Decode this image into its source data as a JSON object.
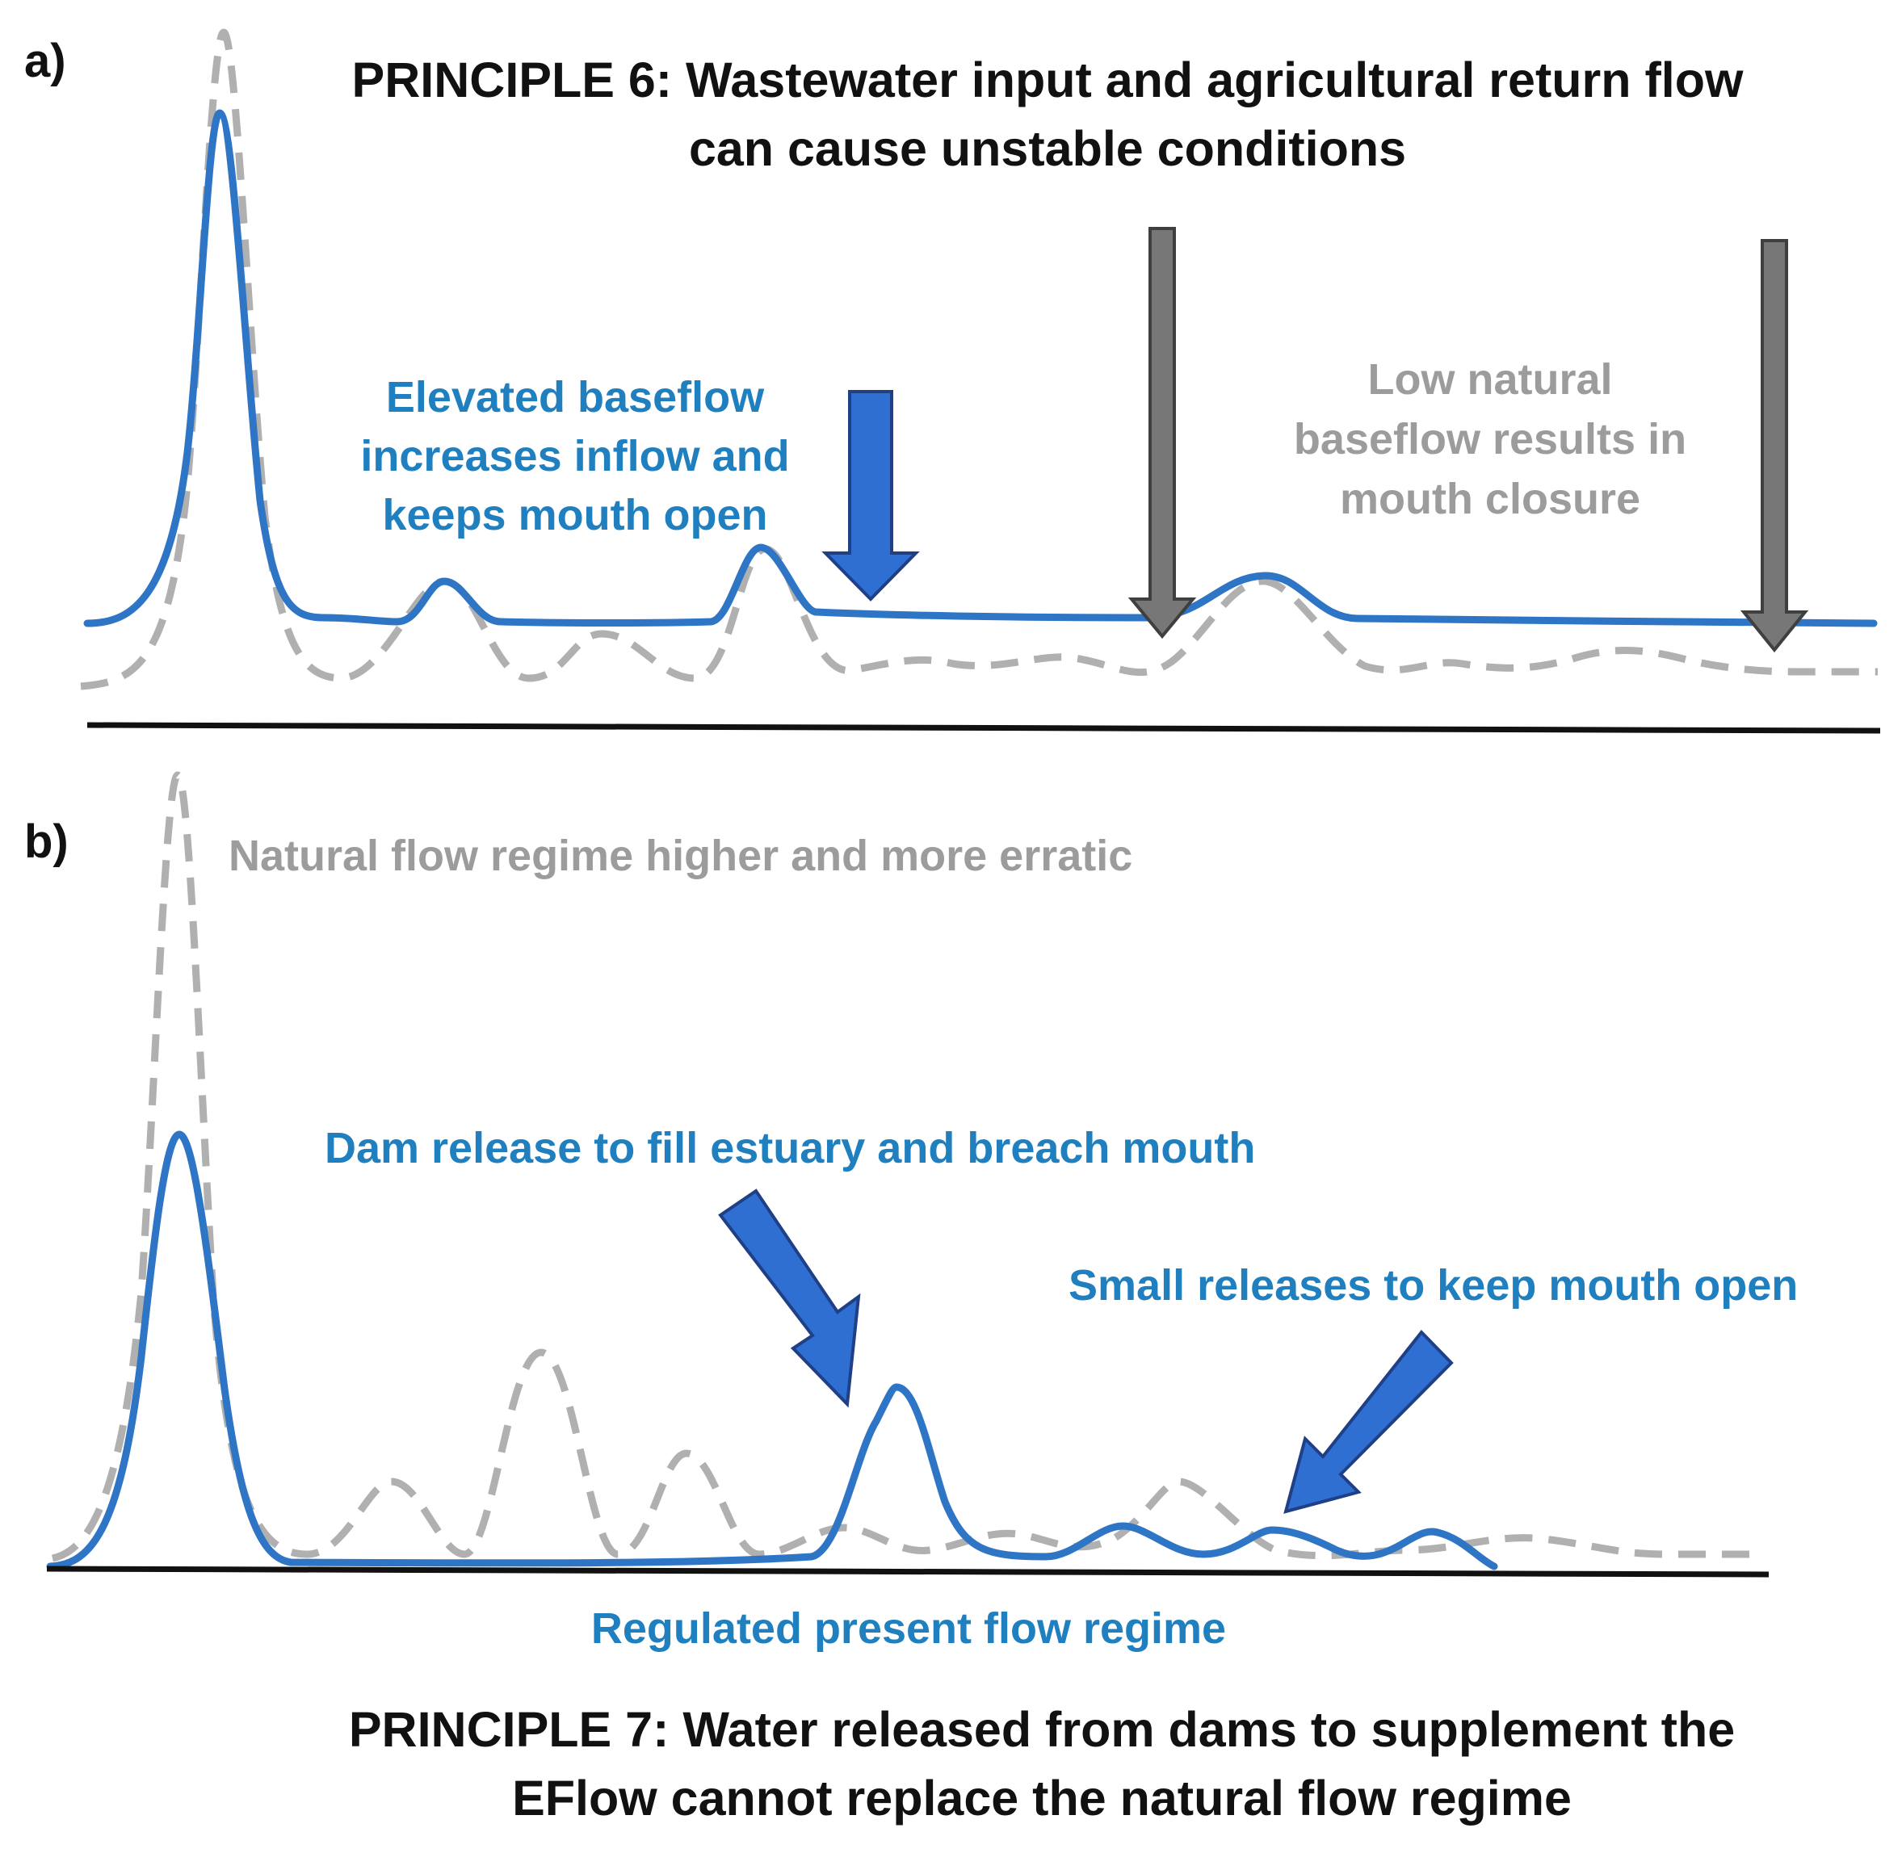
{
  "panel_a": {
    "label": "a)",
    "principle_lines": [
      "PRINCIPLE 6: Wastewater input and agricultural return flow",
      "can cause unstable conditions"
    ],
    "elevated_note_lines": [
      "Elevated baseflow",
      "increases inflow and",
      "keeps mouth open"
    ],
    "low_note_lines": [
      "Low natural",
      "baseflow results in",
      "mouth closure"
    ]
  },
  "panel_b": {
    "label": "b)",
    "natural_note": "Natural flow regime higher and more erratic",
    "dam_note": "Dam release to fill estuary and breach mouth",
    "small_note": "Small releases to keep mouth open",
    "regulated_label": "Regulated present flow regime",
    "principle_lines": [
      "PRINCIPLE 7: Water released from dams to supplement the",
      "EFlow cannot replace the natural flow regime"
    ]
  },
  "colors": {
    "present_flow": "#2f75c6",
    "natural_flow": "#b0b0b0",
    "blue_text": "#1f7fbf",
    "gray_text": "#9c9c9c",
    "blue_arrow": "#2e6fd1",
    "gray_arrow": "#777777"
  }
}
